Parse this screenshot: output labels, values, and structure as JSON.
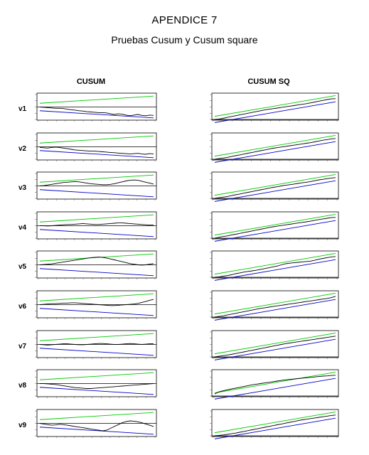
{
  "page": {
    "title": "APENDICE 7",
    "subtitle": "Pruebas Cusum y Cusum square",
    "col_left": "CUSUM",
    "col_right": "CUSUM SQ"
  },
  "colors": {
    "series": "#000000",
    "upper_band": "#00c800",
    "lower_band": "#0000c8",
    "zero_line": "#000000"
  },
  "chart_data": [
    {
      "type": "line",
      "test": "CUSUM",
      "row": "v1",
      "ylim": [
        -40,
        40
      ],
      "upper_band": [
        12,
        35
      ],
      "lower_band": [
        -12,
        -35
      ],
      "series": [
        {
          "values": [
            0,
            -1,
            -2,
            -3,
            -4,
            -4,
            -5,
            -7,
            -9,
            -10,
            -12,
            -13,
            -15,
            -16,
            -17,
            -18,
            -18,
            -19,
            -22,
            -24,
            -22,
            -23,
            -26,
            -28,
            -26,
            -24,
            -27,
            -28,
            -26,
            -27
          ]
        }
      ]
    },
    {
      "type": "line",
      "test": "CUSUM SQ",
      "row": "v1",
      "ylim": [
        0,
        1.2
      ],
      "upper_band": [
        0.15,
        1.15
      ],
      "lower_band": [
        -0.15,
        0.85
      ],
      "series": [
        {
          "values": [
            0,
            0.02,
            0.05,
            0.1,
            0.14,
            0.18,
            0.22,
            0.26,
            0.3,
            0.34,
            0.38,
            0.42,
            0.46,
            0.49,
            0.52,
            0.55,
            0.58,
            0.61,
            0.64,
            0.67,
            0.7,
            0.73,
            0.76,
            0.8,
            0.84,
            0.88,
            0.92,
            0.96,
            0.99,
            1
          ]
        }
      ]
    },
    {
      "type": "line",
      "test": "CUSUM",
      "row": "v2",
      "ylim": [
        -40,
        40
      ],
      "upper_band": [
        12,
        35
      ],
      "lower_band": [
        -12,
        -35
      ],
      "series": [
        {
          "values": [
            -2,
            -3,
            -4,
            -2,
            -1,
            -2,
            -4,
            -6,
            -8,
            -10,
            -11,
            -12,
            -13,
            -14,
            -14,
            -15,
            -16,
            -17,
            -18,
            -19,
            -20,
            -21,
            -22,
            -23,
            -22,
            -21,
            -23,
            -24,
            -22,
            -23
          ]
        }
      ]
    },
    {
      "type": "line",
      "test": "CUSUM SQ",
      "row": "v2",
      "ylim": [
        0,
        1.2
      ],
      "upper_band": [
        0.15,
        1.15
      ],
      "lower_band": [
        -0.15,
        0.85
      ],
      "series": [
        {
          "values": [
            0,
            0.03,
            0.06,
            0.09,
            0.13,
            0.17,
            0.21,
            0.25,
            0.29,
            0.33,
            0.37,
            0.41,
            0.45,
            0.49,
            0.53,
            0.56,
            0.59,
            0.62,
            0.65,
            0.68,
            0.71,
            0.74,
            0.77,
            0.8,
            0.84,
            0.88,
            0.92,
            0.95,
            0.98,
            1
          ]
        }
      ]
    },
    {
      "type": "line",
      "test": "CUSUM",
      "row": "v3",
      "ylim": [
        -40,
        40
      ],
      "upper_band": [
        12,
        35
      ],
      "lower_band": [
        -12,
        -35
      ],
      "series": [
        {
          "values": [
            0,
            1,
            3,
            5,
            7,
            9,
            11,
            12,
            13,
            14,
            13,
            11,
            9,
            7,
            6,
            5,
            4,
            4,
            5,
            7,
            10,
            13,
            16,
            18,
            19,
            18,
            15,
            12,
            9,
            6
          ]
        }
      ]
    },
    {
      "type": "line",
      "test": "CUSUM SQ",
      "row": "v3",
      "ylim": [
        0,
        1.2
      ],
      "upper_band": [
        0.15,
        1.15
      ],
      "lower_band": [
        -0.15,
        0.85
      ],
      "series": [
        {
          "values": [
            0,
            0.03,
            0.06,
            0.09,
            0.13,
            0.17,
            0.21,
            0.25,
            0.29,
            0.33,
            0.37,
            0.41,
            0.45,
            0.49,
            0.53,
            0.56,
            0.6,
            0.63,
            0.66,
            0.69,
            0.72,
            0.75,
            0.78,
            0.81,
            0.85,
            0.89,
            0.92,
            0.95,
            0.98,
            1
          ]
        }
      ]
    },
    {
      "type": "line",
      "test": "CUSUM",
      "row": "v4",
      "ylim": [
        -40,
        40
      ],
      "upper_band": [
        12,
        35
      ],
      "lower_band": [
        -12,
        -35
      ],
      "series": [
        {
          "values": [
            0,
            0,
            -1,
            0,
            1,
            2,
            3,
            4,
            4,
            5,
            6,
            7,
            6,
            5,
            4,
            4,
            5,
            6,
            7,
            8,
            9,
            9,
            8,
            7,
            6,
            5,
            4,
            3,
            2,
            2
          ]
        }
      ]
    },
    {
      "type": "line",
      "test": "CUSUM SQ",
      "row": "v4",
      "ylim": [
        0,
        1.2
      ],
      "upper_band": [
        0.15,
        1.15
      ],
      "lower_band": [
        -0.15,
        0.85
      ],
      "series": [
        {
          "values": [
            0,
            0.04,
            0.08,
            0.11,
            0.15,
            0.19,
            0.23,
            0.27,
            0.31,
            0.35,
            0.39,
            0.43,
            0.47,
            0.51,
            0.55,
            0.58,
            0.61,
            0.64,
            0.67,
            0.7,
            0.73,
            0.76,
            0.79,
            0.82,
            0.86,
            0.9,
            0.93,
            0.96,
            0.99,
            1
          ]
        }
      ]
    },
    {
      "type": "line",
      "test": "CUSUM",
      "row": "v5",
      "ylim": [
        -40,
        40
      ],
      "upper_band": [
        12,
        35
      ],
      "lower_band": [
        -12,
        -35
      ],
      "series": [
        {
          "values": [
            0,
            1,
            2,
            3,
            5,
            7,
            9,
            11,
            13,
            15,
            17,
            19,
            21,
            23,
            24,
            25,
            24,
            22,
            19,
            16,
            13,
            10,
            7,
            4,
            2,
            0,
            -1,
            0,
            2,
            4
          ]
        }
      ]
    },
    {
      "type": "line",
      "test": "CUSUM SQ",
      "row": "v5",
      "ylim": [
        0,
        1.2
      ],
      "upper_band": [
        0.15,
        1.15
      ],
      "lower_band": [
        -0.15,
        0.85
      ],
      "series": [
        {
          "values": [
            0,
            0.02,
            0.05,
            0.08,
            0.12,
            0.17,
            0.21,
            0.25,
            0.28,
            0.31,
            0.34,
            0.38,
            0.42,
            0.46,
            0.5,
            0.54,
            0.6,
            0.65,
            0.68,
            0.7,
            0.72,
            0.74,
            0.76,
            0.78,
            0.82,
            0.87,
            0.91,
            0.95,
            0.98,
            1
          ]
        }
      ]
    },
    {
      "type": "line",
      "test": "CUSUM",
      "row": "v6",
      "ylim": [
        -40,
        40
      ],
      "upper_band": [
        12,
        35
      ],
      "lower_band": [
        -12,
        -35
      ],
      "series": [
        {
          "values": [
            0,
            1,
            2,
            3,
            3,
            4,
            5,
            5,
            6,
            6,
            5,
            4,
            3,
            2,
            1,
            0,
            -1,
            -2,
            -3,
            -3,
            -2,
            -1,
            0,
            1,
            2,
            4,
            7,
            10,
            14,
            17
          ]
        }
      ]
    },
    {
      "type": "line",
      "test": "CUSUM SQ",
      "row": "v6",
      "ylim": [
        0,
        1.2
      ],
      "upper_band": [
        0.15,
        1.15
      ],
      "lower_band": [
        -0.15,
        0.85
      ],
      "series": [
        {
          "values": [
            0,
            0.03,
            0.06,
            0.1,
            0.14,
            0.18,
            0.22,
            0.26,
            0.3,
            0.34,
            0.38,
            0.42,
            0.45,
            0.48,
            0.51,
            0.54,
            0.57,
            0.6,
            0.63,
            0.66,
            0.69,
            0.72,
            0.75,
            0.78,
            0.81,
            0.84,
            0.87,
            0.9,
            0.94,
            1
          ]
        }
      ]
    },
    {
      "type": "line",
      "test": "CUSUM",
      "row": "v7",
      "ylim": [
        -40,
        40
      ],
      "upper_band": [
        12,
        35
      ],
      "lower_band": [
        -12,
        -35
      ],
      "series": [
        {
          "values": [
            0,
            -1,
            -2,
            -1,
            0,
            1,
            2,
            2,
            1,
            0,
            -1,
            -1,
            0,
            1,
            2,
            3,
            3,
            2,
            1,
            0,
            0,
            1,
            2,
            3,
            2,
            1,
            0,
            1,
            2,
            2
          ]
        }
      ]
    },
    {
      "type": "line",
      "test": "CUSUM SQ",
      "row": "v7",
      "ylim": [
        0,
        1.2
      ],
      "upper_band": [
        0.15,
        1.15
      ],
      "lower_band": [
        -0.15,
        0.85
      ],
      "series": [
        {
          "values": [
            0,
            0.03,
            0.06,
            0.09,
            0.12,
            0.16,
            0.2,
            0.24,
            0.28,
            0.32,
            0.36,
            0.4,
            0.44,
            0.48,
            0.52,
            0.56,
            0.6,
            0.64,
            0.67,
            0.7,
            0.73,
            0.76,
            0.79,
            0.82,
            0.85,
            0.88,
            0.91,
            0.94,
            0.97,
            1
          ]
        }
      ]
    },
    {
      "type": "line",
      "test": "CUSUM",
      "row": "v8",
      "ylim": [
        -40,
        40
      ],
      "upper_band": [
        12,
        35
      ],
      "lower_band": [
        -12,
        -35
      ],
      "series": [
        {
          "values": [
            0,
            0,
            -1,
            -2,
            -3,
            -5,
            -7,
            -9,
            -11,
            -13,
            -14,
            -15,
            -16,
            -16,
            -15,
            -14,
            -13,
            -12,
            -11,
            -10,
            -9,
            -8,
            -7,
            -6,
            -5,
            -4,
            -3,
            -2,
            -1,
            0
          ]
        }
      ]
    },
    {
      "type": "line",
      "test": "CUSUM SQ",
      "row": "v8",
      "ylim": [
        0,
        1.2
      ],
      "upper_band": [
        0.15,
        1.15
      ],
      "lower_band": [
        -0.15,
        0.85
      ],
      "series": [
        {
          "values": [
            0.1,
            0.2,
            0.25,
            0.3,
            0.34,
            0.38,
            0.42,
            0.46,
            0.5,
            0.54,
            0.57,
            0.6,
            0.63,
            0.66,
            0.69,
            0.72,
            0.75,
            0.78,
            0.8,
            0.82,
            0.84,
            0.86,
            0.88,
            0.9,
            0.92,
            0.94,
            0.96,
            0.97,
            0.99,
            1
          ]
        }
      ]
    },
    {
      "type": "line",
      "test": "CUSUM",
      "row": "v9",
      "ylim": [
        -40,
        40
      ],
      "upper_band": [
        12,
        35
      ],
      "lower_band": [
        -12,
        -35
      ],
      "series": [
        {
          "values": [
            0,
            -2,
            -4,
            -6,
            -5,
            -3,
            -4,
            -6,
            -8,
            -10,
            -12,
            -14,
            -16,
            -18,
            -20,
            -22,
            -24,
            -22,
            -16,
            -10,
            -4,
            2,
            6,
            8,
            7,
            5,
            2,
            -2,
            -6,
            -10
          ]
        }
      ]
    },
    {
      "type": "line",
      "test": "CUSUM SQ",
      "row": "v9",
      "ylim": [
        0,
        1.2
      ],
      "upper_band": [
        0.15,
        1.15
      ],
      "lower_band": [
        -0.15,
        0.85
      ],
      "series": [
        {
          "values": [
            0,
            0.02,
            0.04,
            0.07,
            0.1,
            0.13,
            0.17,
            0.21,
            0.25,
            0.29,
            0.33,
            0.37,
            0.41,
            0.45,
            0.49,
            0.53,
            0.57,
            0.61,
            0.65,
            0.69,
            0.73,
            0.77,
            0.8,
            0.83,
            0.86,
            0.89,
            0.92,
            0.95,
            0.98,
            1
          ]
        }
      ]
    }
  ]
}
